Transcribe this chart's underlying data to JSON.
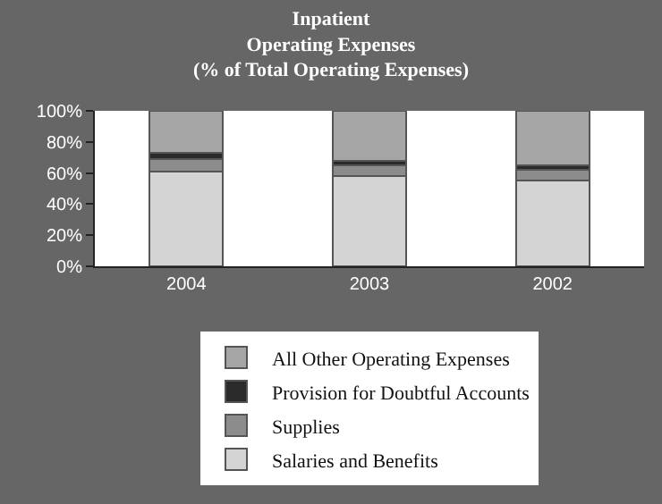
{
  "chart_data": {
    "type": "bar",
    "title": "Inpatient\nOperating Expenses\n(% of Total Operating Expenses)",
    "categories": [
      "2004",
      "2003",
      "2002"
    ],
    "stacked": true,
    "series": [
      {
        "name": "Salaries and Benefits",
        "color": "#d4d4d4",
        "values": [
          61,
          58,
          55
        ]
      },
      {
        "name": "Supplies",
        "color": "#8c8c8c",
        "values": [
          8,
          7,
          7
        ]
      },
      {
        "name": "Provision for Doubtful Accounts",
        "color": "#2a2a2a",
        "values": [
          4,
          3,
          3
        ]
      },
      {
        "name": "All Other Operating Expenses",
        "color": "#a6a6a6",
        "values": [
          27,
          32,
          35
        ]
      }
    ],
    "ylim": [
      0,
      100
    ],
    "yticks": [
      {
        "value": 0,
        "label": "0%"
      },
      {
        "value": 20,
        "label": "20%"
      },
      {
        "value": 40,
        "label": "40%"
      },
      {
        "value": 60,
        "label": "60%"
      },
      {
        "value": 80,
        "label": "80%"
      },
      {
        "value": 100,
        "label": "100%"
      }
    ],
    "grid": false,
    "legend": "bottom"
  }
}
